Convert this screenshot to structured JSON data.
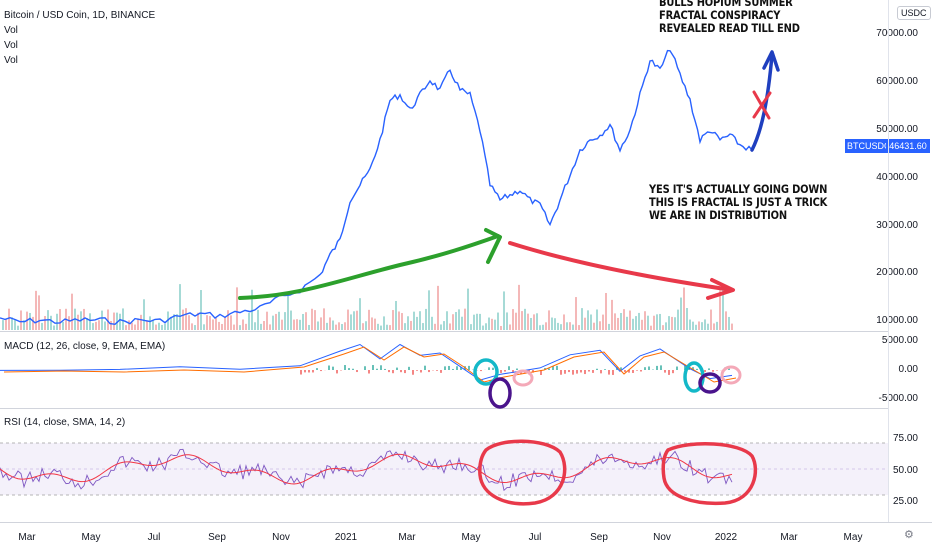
{
  "header": {
    "symbol_line": "Bitcoin / USD Coin, 1D, BINANCE",
    "vol_labels": [
      "Vol",
      "Vol",
      "Vol"
    ],
    "currency_badge": "USDC"
  },
  "price_axis": {
    "ticks": [
      "70000.00",
      "60000.00",
      "50000.00",
      "40000.00",
      "30000.00",
      "20000.00",
      "10000.00"
    ],
    "symbol_tag": "BTCUSDC",
    "last_price": "46431.60"
  },
  "macd": {
    "label": "MACD (12, 26, close, 9, EMA, EMA)",
    "ticks": [
      "5000.00",
      "0.00",
      "-5000.00"
    ]
  },
  "rsi": {
    "label": "RSI (14, close, SMA, 14, 2)",
    "ticks": [
      "75.00",
      "50.00",
      "25.00"
    ]
  },
  "time_axis": {
    "ticks": [
      "Mar",
      "May",
      "Jul",
      "Sep",
      "Nov",
      "2021",
      "Mar",
      "May",
      "Jul",
      "Sep",
      "Nov",
      "2022",
      "Mar",
      "May"
    ]
  },
  "annotations": {
    "top_note": [
      "BULLS HOPIUM SUMMER",
      "FRACTAL CONSPIRACY",
      "REVEALED READ TILL END"
    ],
    "mid_note": [
      "YES IT'S ACTUALLY GOING DOWN",
      "THIS IS FRACTAL IS JUST A TRICK",
      "WE ARE IN DISTRIBUTION"
    ]
  },
  "colors": {
    "price_line": "#2962ff",
    "green_arrow": "#2ca02c",
    "red_arrow": "#e8394a",
    "blue_arrow": "#1f3fbf",
    "macd_line": "#2962ff",
    "signal_line": "#ff6d00",
    "rsi_line": "#7e57c2",
    "rsi_ma": "#f23645"
  }
}
